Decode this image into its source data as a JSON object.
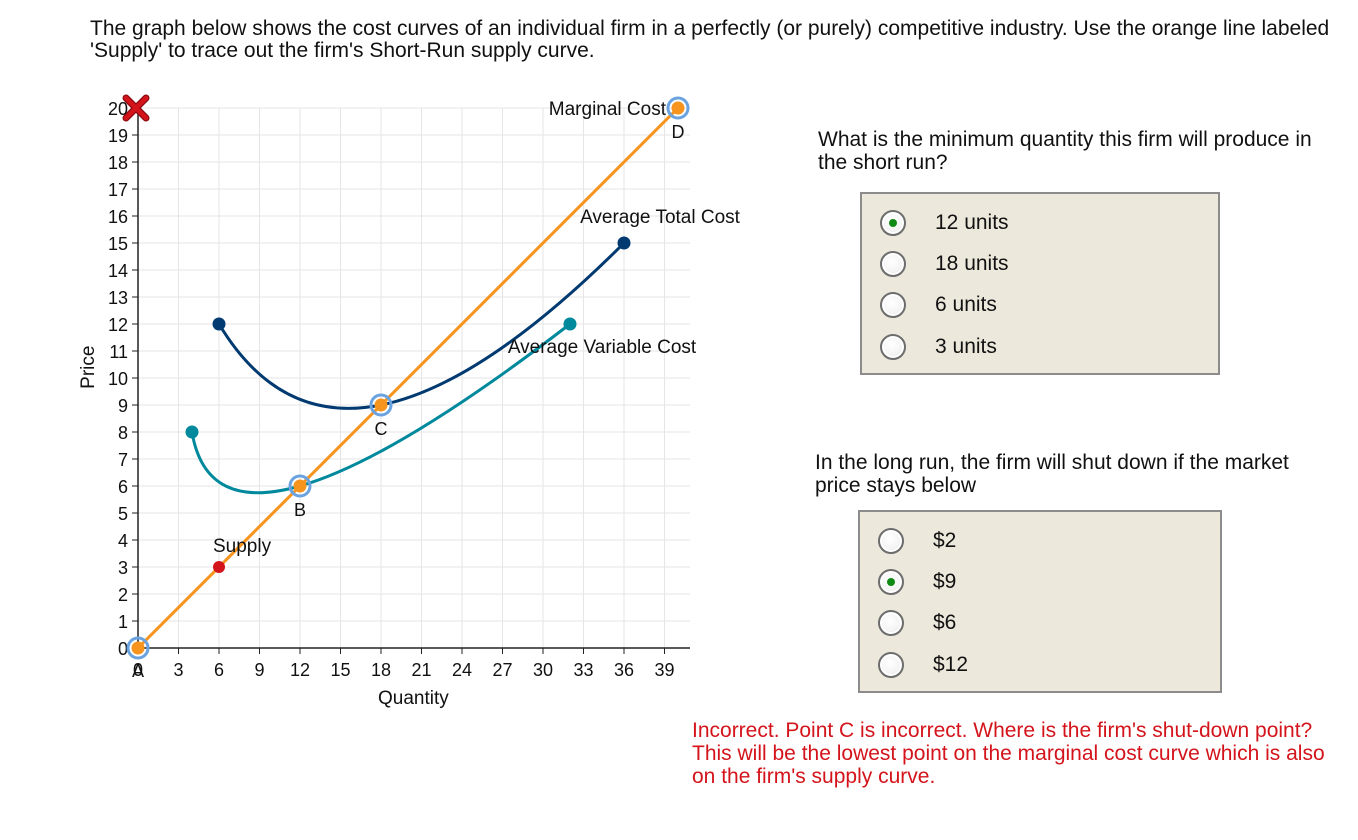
{
  "instructions": "The graph below shows the cost curves of an individual firm in a perfectly (or purely) competitive industry. Use the orange line labeled 'Supply' to trace out the firm's Short-Run supply curve.",
  "colors": {
    "supply": "#f7941d",
    "atc": "#003a70",
    "avc": "#00899d",
    "handle_ring": "#6aa3e0",
    "supply_dot": "#d4141b",
    "incorrect_mark": "#d4141b",
    "selected_radio": "#0f8a12",
    "feedback": "#d4141b",
    "option_panel": "#ece9dc"
  },
  "chart_data": {
    "type": "line",
    "xlabel": "Quantity",
    "ylabel": "Price",
    "xlim": [
      0,
      40
    ],
    "ylim": [
      0,
      20
    ],
    "x_ticks": [
      0,
      3,
      6,
      9,
      12,
      15,
      18,
      21,
      24,
      27,
      30,
      33,
      36,
      39
    ],
    "y_ticks": [
      0,
      1,
      2,
      3,
      4,
      5,
      6,
      7,
      8,
      9,
      10,
      11,
      12,
      13,
      14,
      15,
      16,
      17,
      18,
      19,
      20
    ],
    "grid": true,
    "series": [
      {
        "name": "Marginal Cost",
        "color": "#f7941d",
        "points": [
          [
            0,
            0
          ],
          [
            40,
            20
          ]
        ]
      },
      {
        "name": "Average Total Cost",
        "color": "#003a70",
        "points": [
          [
            6,
            12
          ],
          [
            18,
            9
          ],
          [
            36,
            15
          ]
        ]
      },
      {
        "name": "Average Variable Cost",
        "color": "#00899d",
        "points": [
          [
            4,
            8
          ],
          [
            12,
            6
          ],
          [
            32,
            12
          ]
        ]
      }
    ],
    "handles": [
      {
        "label": "A",
        "x": 0,
        "y": 0
      },
      {
        "label": "B",
        "x": 12,
        "y": 6
      },
      {
        "label": "C",
        "x": 18,
        "y": 9
      },
      {
        "label": "D",
        "x": 40,
        "y": 20
      }
    ],
    "supply_marker": {
      "label": "Supply",
      "x": 6,
      "y": 3
    },
    "incorrect_icon": "red-x-icon"
  },
  "question1": {
    "prompt": "What is the minimum quantity this firm will produce in the short run?",
    "options": [
      "12 units",
      "18 units",
      "6 units",
      "3 units"
    ],
    "selected_index": 0
  },
  "question2": {
    "prompt": "In the long run, the firm will shut down if the market price stays below",
    "options": [
      "$2",
      "$9",
      "$6",
      "$12"
    ],
    "selected_index": 1
  },
  "feedback": "Incorrect. Point C is incorrect. Where is the firm's shut-down point? This will be the lowest point on the marginal cost curve which is also on the firm's supply curve."
}
